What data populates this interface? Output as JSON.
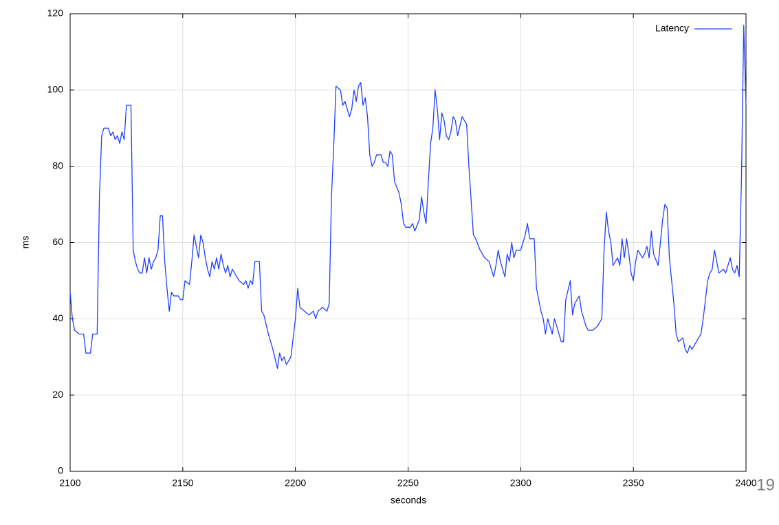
{
  "chart_data": {
    "type": "line",
    "x_label": "seconds",
    "y_label": "ms",
    "page_number": "19",
    "xlim": [
      2100,
      2400
    ],
    "xticks": [
      2100,
      2150,
      2200,
      2250,
      2300,
      2350,
      2400
    ],
    "ylim": [
      0,
      120
    ],
    "yticks": [
      0,
      20,
      40,
      60,
      80,
      100,
      120
    ],
    "grid": true,
    "legend": "top-right",
    "x": [
      2100,
      2101,
      2102,
      2104,
      2106,
      2107,
      2109,
      2110,
      2112,
      2113,
      2114,
      2115,
      2117,
      2118,
      2119,
      2120,
      2121,
      2122,
      2123,
      2124,
      2125,
      2127,
      2128,
      2129,
      2130,
      2131,
      2132,
      2133,
      2134,
      2135,
      2136,
      2137,
      2138,
      2139,
      2140,
      2141,
      2142,
      2143,
      2144,
      2145,
      2146,
      2148,
      2149,
      2150,
      2151,
      2153,
      2154,
      2155,
      2156,
      2157,
      2158,
      2159,
      2160,
      2161,
      2162,
      2163,
      2164,
      2165,
      2166,
      2167,
      2168,
      2169,
      2170,
      2171,
      2172,
      2174,
      2175,
      2177,
      2178,
      2179,
      2180,
      2181,
      2182,
      2184,
      2185,
      2186,
      2188,
      2190,
      2192,
      2193,
      2194,
      2195,
      2196,
      2198,
      2199,
      2200,
      2201,
      2202,
      2204,
      2206,
      2208,
      2209,
      2210,
      2212,
      2214,
      2215,
      2216,
      2217,
      2218,
      2220,
      2221,
      2222,
      2223,
      2224,
      2225,
      2226,
      2227,
      2228,
      2229,
      2230,
      2231,
      2232,
      2233,
      2234,
      2235,
      2236,
      2238,
      2239,
      2240,
      2241,
      2242,
      2243,
      2244,
      2246,
      2247,
      2248,
      2249,
      2251,
      2252,
      2253,
      2255,
      2256,
      2257,
      2258,
      2259,
      2260,
      2261,
      2262,
      2263,
      2264,
      2265,
      2266,
      2267,
      2268,
      2269,
      2270,
      2271,
      2272,
      2274,
      2276,
      2277,
      2279,
      2280,
      2282,
      2284,
      2286,
      2288,
      2289,
      2290,
      2291,
      2293,
      2294,
      2295,
      2296,
      2297,
      2298,
      2300,
      2302,
      2303,
      2304,
      2306,
      2307,
      2309,
      2310,
      2311,
      2312,
      2313,
      2314,
      2315,
      2316,
      2318,
      2319,
      2320,
      2322,
      2323,
      2324,
      2326,
      2327,
      2329,
      2330,
      2332,
      2334,
      2336,
      2337,
      2338,
      2339,
      2340,
      2341,
      2343,
      2344,
      2345,
      2346,
      2347,
      2348,
      2349,
      2350,
      2351,
      2352,
      2354,
      2355,
      2356,
      2357,
      2358,
      2359,
      2361,
      2363,
      2364,
      2365,
      2366,
      2367,
      2368,
      2369,
      2370,
      2372,
      2373,
      2374,
      2375,
      2376,
      2378,
      2380,
      2381,
      2382,
      2383,
      2384,
      2385,
      2386,
      2387,
      2388,
      2390,
      2391,
      2393,
      2394,
      2395,
      2396,
      2397,
      2398,
      2399,
      2400
    ],
    "series": [
      {
        "name": "Latency",
        "color": "#1f3fff",
        "values": [
          47,
          40,
          37,
          36,
          36,
          31,
          31,
          36,
          36,
          72,
          88,
          90,
          90,
          88,
          89,
          87,
          88,
          86,
          89,
          87,
          96,
          96,
          58,
          55,
          53,
          52,
          52,
          56,
          52,
          56,
          53,
          55,
          56,
          58,
          67,
          67,
          55,
          48,
          42,
          47,
          46,
          46,
          45,
          45,
          50,
          49,
          55,
          62,
          59,
          56,
          62,
          60,
          56,
          53,
          51,
          55,
          53,
          56,
          53,
          57,
          54,
          52,
          54,
          51,
          53,
          51,
          50,
          49,
          50,
          48,
          50,
          49,
          55,
          55,
          42,
          41,
          36,
          32,
          27,
          31,
          29,
          30,
          28,
          30,
          35,
          40,
          48,
          43,
          42,
          41,
          42,
          40,
          42,
          43,
          42,
          44,
          72,
          85,
          101,
          100,
          96,
          97,
          95,
          93,
          95,
          100,
          97,
          101,
          102,
          96,
          98,
          93,
          83,
          80,
          81,
          83,
          83,
          81,
          81,
          80,
          84,
          83,
          76,
          73,
          70,
          65,
          64,
          64,
          65,
          63,
          66,
          72,
          68,
          65,
          76,
          86,
          90,
          100,
          95,
          87,
          94,
          92,
          88,
          87,
          89,
          93,
          92,
          88,
          93,
          91,
          80,
          62,
          61,
          58,
          56,
          55,
          51,
          54,
          58,
          55,
          51,
          57,
          55,
          60,
          56,
          58,
          58,
          62,
          65,
          61,
          61,
          48,
          42,
          40,
          36,
          40,
          38,
          36,
          40,
          38,
          34,
          34,
          45,
          50,
          41,
          44,
          46,
          42,
          38,
          37,
          37,
          38,
          40,
          58,
          68,
          63,
          60,
          54,
          56,
          54,
          61,
          56,
          61,
          57,
          52,
          50,
          55,
          58,
          56,
          57,
          59,
          56,
          63,
          57,
          54,
          66,
          70,
          69,
          56,
          50,
          44,
          36,
          34,
          35,
          32,
          31,
          33,
          32,
          34,
          36,
          40,
          45,
          50,
          52,
          53,
          58,
          55,
          52,
          53,
          52,
          56,
          53,
          52,
          54,
          51,
          77,
          117,
          96
        ]
      }
    ]
  }
}
